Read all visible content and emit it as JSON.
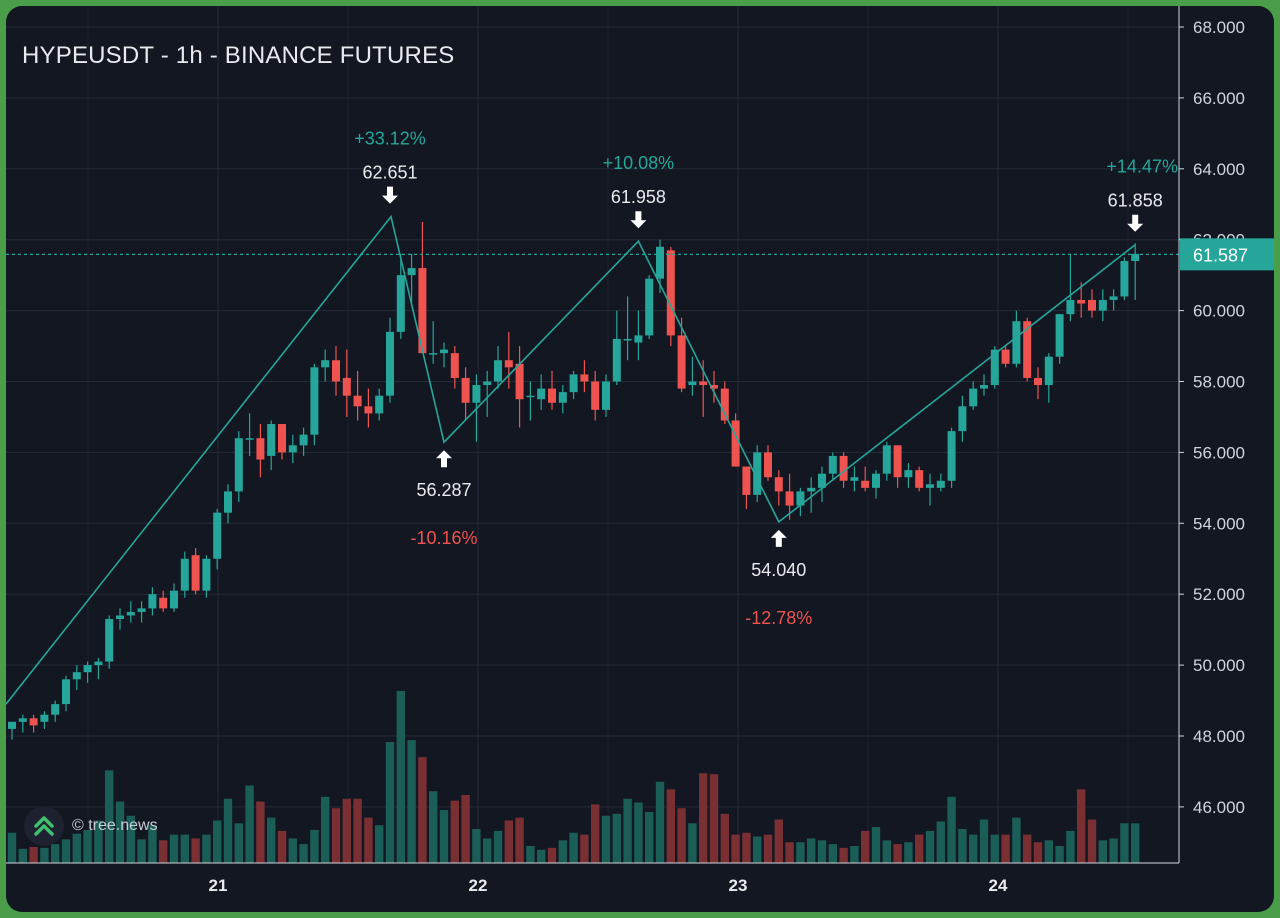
{
  "chart_title": "HYPEUSDT - 1h - BINANCE FUTURES",
  "watermark": {
    "text": "© tree.news",
    "icon": "tree-news-logo-icon"
  },
  "colors": {
    "background": "#131722",
    "grid": "#252a37",
    "up": "#26a69a",
    "down": "#ef5350",
    "line": "#26a69a",
    "up_volume": "#1b5e57",
    "down_volume": "#7a2f33",
    "price_tag": "#26a69a",
    "axis_text": "#d1d4dc",
    "pct_up": "#26a69a",
    "pct_down": "#ef5350"
  },
  "chart_data": {
    "type": "candlestick",
    "title": "HYPEUSDT - 1h - BINANCE FUTURES",
    "x_ticks": [
      "21",
      "22",
      "23",
      "24"
    ],
    "y_ticks": [
      "46.000",
      "48.000",
      "50.000",
      "52.000",
      "54.000",
      "56.000",
      "58.000",
      "60.000",
      "62.000",
      "64.000",
      "66.000",
      "68.000"
    ],
    "ylim": [
      44.4,
      68.4
    ],
    "grid": true,
    "current_price": "61.587",
    "pivots": [
      {
        "label": "62.651",
        "price": 62.651,
        "type": "high",
        "pct": "+33.12%"
      },
      {
        "label": "56.287",
        "price": 56.287,
        "type": "low",
        "pct": "-10.16%"
      },
      {
        "label": "61.958",
        "price": 61.958,
        "type": "high",
        "pct": "+10.08%"
      },
      {
        "label": "54.040",
        "price": 54.04,
        "type": "low",
        "pct": "-12.78%"
      },
      {
        "label": "61.858",
        "price": 61.858,
        "type": "high",
        "pct": "+14.47%"
      }
    ],
    "candles": [
      [
        48.2,
        48.4,
        47.9,
        48.4
      ],
      [
        48.4,
        48.6,
        48.1,
        48.5
      ],
      [
        48.5,
        48.6,
        48.1,
        48.3
      ],
      [
        48.4,
        48.7,
        48.2,
        48.6
      ],
      [
        48.6,
        49.0,
        48.4,
        48.9
      ],
      [
        48.9,
        49.7,
        48.7,
        49.6
      ],
      [
        49.6,
        50.0,
        49.3,
        49.8
      ],
      [
        49.8,
        50.1,
        49.5,
        50.0
      ],
      [
        50.0,
        50.2,
        49.6,
        50.1
      ],
      [
        50.1,
        51.4,
        49.9,
        51.3
      ],
      [
        51.3,
        51.6,
        51.0,
        51.4
      ],
      [
        51.4,
        51.8,
        51.2,
        51.5
      ],
      [
        51.5,
        51.8,
        51.2,
        51.6
      ],
      [
        51.6,
        52.2,
        51.4,
        52.0
      ],
      [
        51.9,
        52.1,
        51.5,
        51.6
      ],
      [
        51.6,
        52.3,
        51.5,
        52.1
      ],
      [
        52.1,
        53.2,
        51.9,
        53.0
      ],
      [
        53.1,
        53.3,
        52.0,
        52.1
      ],
      [
        52.1,
        53.1,
        51.9,
        53.0
      ],
      [
        53.0,
        54.4,
        52.7,
        54.3
      ],
      [
        54.3,
        55.1,
        54.0,
        54.9
      ],
      [
        54.9,
        56.6,
        54.6,
        56.4
      ],
      [
        56.4,
        57.1,
        55.9,
        56.4
      ],
      [
        56.4,
        56.8,
        55.3,
        55.8
      ],
      [
        55.9,
        56.9,
        55.5,
        56.8
      ],
      [
        56.8,
        56.8,
        55.8,
        56.0
      ],
      [
        56.0,
        56.5,
        55.7,
        56.2
      ],
      [
        56.2,
        56.7,
        55.9,
        56.5
      ],
      [
        56.5,
        58.5,
        56.2,
        58.4
      ],
      [
        58.4,
        58.9,
        58.0,
        58.6
      ],
      [
        58.6,
        59.0,
        57.6,
        58.0
      ],
      [
        58.1,
        58.9,
        57.0,
        57.6
      ],
      [
        57.6,
        58.3,
        56.9,
        57.3
      ],
      [
        57.3,
        57.8,
        56.7,
        57.1
      ],
      [
        57.1,
        57.8,
        56.9,
        57.6
      ],
      [
        57.6,
        59.8,
        57.4,
        59.4
      ],
      [
        59.4,
        61.6,
        59.2,
        61.0
      ],
      [
        61.0,
        61.6,
        60.2,
        61.2
      ],
      [
        61.2,
        62.5,
        58.8,
        58.8
      ],
      [
        58.8,
        59.7,
        58.5,
        58.8
      ],
      [
        58.8,
        59.1,
        58.4,
        58.9
      ],
      [
        58.8,
        59.0,
        57.8,
        58.1
      ],
      [
        58.1,
        58.4,
        56.9,
        57.4
      ],
      [
        57.4,
        58.2,
        56.3,
        57.9
      ],
      [
        57.9,
        58.3,
        57.0,
        58.0
      ],
      [
        58.0,
        59.0,
        57.8,
        58.6
      ],
      [
        58.6,
        59.4,
        57.8,
        58.4
      ],
      [
        58.5,
        59.0,
        56.7,
        57.5
      ],
      [
        57.6,
        58.0,
        56.9,
        57.6
      ],
      [
        57.5,
        58.2,
        57.2,
        57.8
      ],
      [
        57.8,
        58.3,
        57.2,
        57.4
      ],
      [
        57.4,
        57.9,
        57.1,
        57.7
      ],
      [
        57.7,
        58.3,
        57.5,
        58.2
      ],
      [
        58.2,
        58.6,
        57.7,
        58.0
      ],
      [
        58.0,
        58.3,
        56.9,
        57.2
      ],
      [
        57.2,
        58.2,
        57.0,
        58.0
      ],
      [
        58.0,
        60.0,
        57.9,
        59.2
      ],
      [
        59.2,
        60.4,
        58.6,
        59.2
      ],
      [
        59.1,
        60.0,
        58.6,
        59.3
      ],
      [
        59.3,
        61.0,
        59.2,
        60.9
      ],
      [
        60.9,
        62.0,
        60.5,
        61.8
      ],
      [
        61.7,
        61.8,
        59.0,
        59.3
      ],
      [
        59.3,
        59.8,
        57.7,
        57.8
      ],
      [
        57.9,
        58.7,
        57.6,
        58.0
      ],
      [
        58.0,
        58.6,
        57.0,
        57.9
      ],
      [
        57.9,
        58.3,
        57.4,
        57.8
      ],
      [
        57.8,
        58.0,
        56.8,
        56.9
      ],
      [
        56.9,
        57.1,
        55.6,
        55.6
      ],
      [
        55.6,
        55.6,
        54.4,
        54.8
      ],
      [
        54.8,
        56.2,
        54.6,
        56.0
      ],
      [
        56.0,
        56.2,
        55.2,
        55.3
      ],
      [
        55.3,
        55.5,
        54.5,
        54.9
      ],
      [
        54.9,
        55.4,
        54.1,
        54.5
      ],
      [
        54.5,
        55.0,
        54.2,
        54.9
      ],
      [
        54.9,
        55.3,
        54.3,
        55.0
      ],
      [
        55.0,
        55.6,
        54.6,
        55.4
      ],
      [
        55.4,
        56.0,
        55.2,
        55.9
      ],
      [
        55.9,
        56.0,
        55.0,
        55.2
      ],
      [
        55.2,
        55.6,
        54.9,
        55.3
      ],
      [
        55.2,
        55.6,
        54.9,
        55.0
      ],
      [
        55.0,
        55.5,
        54.7,
        55.4
      ],
      [
        55.4,
        56.3,
        55.2,
        56.2
      ],
      [
        56.2,
        56.2,
        55.0,
        55.3
      ],
      [
        55.3,
        55.7,
        55.0,
        55.5
      ],
      [
        55.5,
        55.6,
        54.9,
        55.0
      ],
      [
        55.0,
        55.4,
        54.5,
        55.1
      ],
      [
        55.0,
        55.4,
        54.9,
        55.2
      ],
      [
        55.2,
        56.7,
        55.0,
        56.6
      ],
      [
        56.6,
        57.6,
        56.3,
        57.3
      ],
      [
        57.3,
        58.0,
        57.2,
        57.8
      ],
      [
        57.8,
        58.2,
        57.6,
        57.9
      ],
      [
        57.9,
        59.0,
        57.8,
        58.9
      ],
      [
        58.9,
        59.0,
        58.4,
        58.5
      ],
      [
        58.5,
        60.0,
        58.4,
        59.7
      ],
      [
        59.7,
        59.8,
        58.0,
        58.1
      ],
      [
        58.1,
        58.4,
        57.5,
        57.9
      ],
      [
        57.9,
        58.8,
        57.4,
        58.7
      ],
      [
        58.7,
        59.9,
        58.5,
        59.9
      ],
      [
        59.9,
        61.6,
        59.7,
        60.3
      ],
      [
        60.3,
        60.8,
        59.8,
        60.2
      ],
      [
        60.3,
        60.6,
        59.8,
        60.0
      ],
      [
        60.0,
        60.6,
        59.7,
        60.3
      ],
      [
        60.3,
        60.6,
        60.0,
        60.4
      ],
      [
        60.4,
        61.5,
        60.3,
        61.4
      ],
      [
        61.4,
        61.9,
        60.3,
        61.6
      ]
    ],
    "volumes": [
      0.32,
      0.15,
      0.17,
      0.16,
      0.2,
      0.25,
      0.31,
      0.35,
      0.45,
      0.98,
      0.65,
      0.5,
      0.25,
      0.4,
      0.24,
      0.3,
      0.3,
      0.26,
      0.3,
      0.45,
      0.68,
      0.42,
      0.82,
      0.65,
      0.48,
      0.34,
      0.26,
      0.2,
      0.35,
      0.7,
      0.58,
      0.68,
      0.68,
      0.48,
      0.4,
      1.28,
      1.82,
      1.3,
      1.12,
      0.76,
      0.56,
      0.66,
      0.72,
      0.36,
      0.26,
      0.34,
      0.45,
      0.48,
      0.18,
      0.14,
      0.16,
      0.24,
      0.32,
      0.3,
      0.62,
      0.5,
      0.52,
      0.68,
      0.64,
      0.54,
      0.86,
      0.78,
      0.58,
      0.42,
      0.95,
      0.94,
      0.52,
      0.3,
      0.32,
      0.28,
      0.3,
      0.46,
      0.22,
      0.22,
      0.26,
      0.24,
      0.2,
      0.16,
      0.18,
      0.34,
      0.38,
      0.24,
      0.2,
      0.22,
      0.3,
      0.34,
      0.44,
      0.7,
      0.36,
      0.3,
      0.46,
      0.3,
      0.3,
      0.48,
      0.3,
      0.22,
      0.24,
      0.18,
      0.34,
      0.78,
      0.46,
      0.24,
      0.26,
      0.42,
      0.42
    ],
    "ycoords_note": ""
  }
}
